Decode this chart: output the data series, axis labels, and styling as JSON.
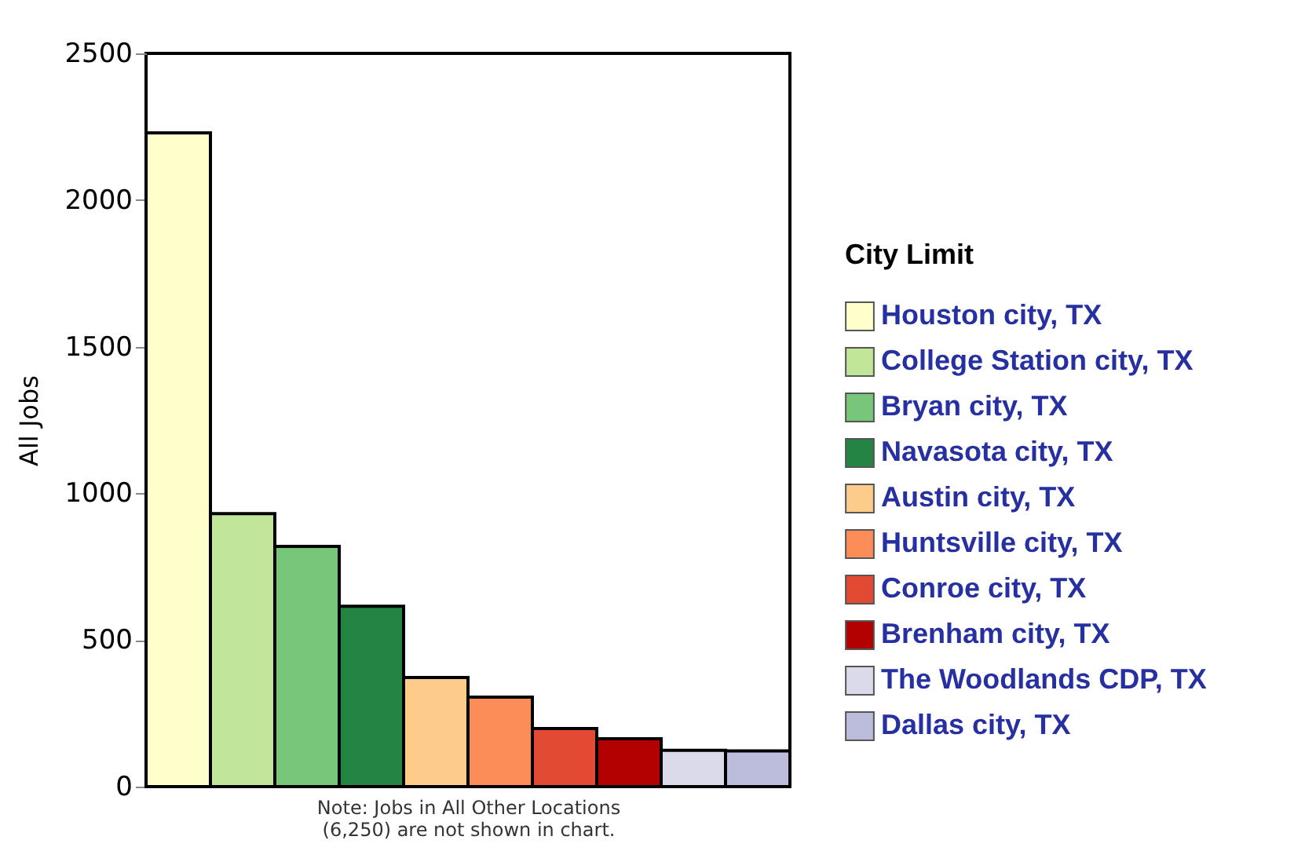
{
  "chart_data": {
    "type": "bar",
    "ylabel": "All Jobs",
    "legend_title": "City Limit",
    "categories": [
      null
    ],
    "series": [
      {
        "name": "Houston city, TX",
        "color": "#ffffcc",
        "values": [
          2229
        ]
      },
      {
        "name": "College Station city, TX",
        "color": "#c2e699",
        "values": [
          931
        ]
      },
      {
        "name": "Bryan city, TX",
        "color": "#78c679",
        "values": [
          819
        ]
      },
      {
        "name": "Navasota city, TX",
        "color": "#238443",
        "values": [
          615
        ]
      },
      {
        "name": "Austin city, TX",
        "color": "#fdcc8a",
        "values": [
          372
        ]
      },
      {
        "name": "Huntsville city, TX",
        "color": "#fc8d59",
        "values": [
          305
        ]
      },
      {
        "name": "Conroe city, TX",
        "color": "#e34a33",
        "values": [
          198
        ]
      },
      {
        "name": "Brenham city, TX",
        "color": "#b30000",
        "values": [
          163
        ]
      },
      {
        "name": "The Woodlands CDP, TX",
        "color": "#dadaeb",
        "values": [
          124
        ]
      },
      {
        "name": "Dallas city, TX",
        "color": "#bcbddc",
        "values": [
          122
        ]
      }
    ],
    "ylim": [
      0,
      2500
    ],
    "yticks": [
      0,
      500,
      1000,
      1500,
      2000,
      2500
    ],
    "tick_labels": "y",
    "legend": "right",
    "grid": false,
    "annotations": [
      "Note: Jobs in All Other Locations (6,250) are not shown in chart."
    ]
  }
}
